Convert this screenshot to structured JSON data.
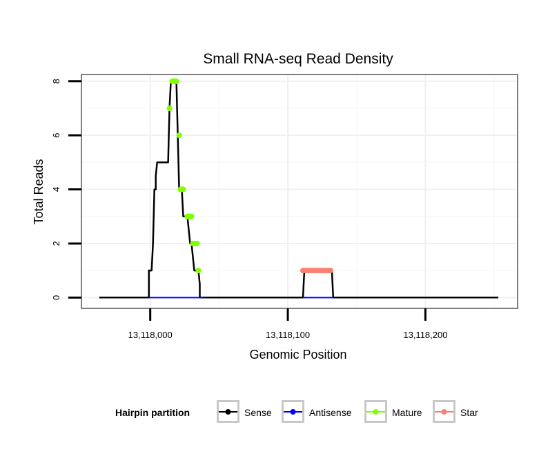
{
  "chart_data": {
    "type": "line",
    "title": "Small RNA-seq Read Density",
    "xlabel": "Genomic Position",
    "ylabel": "Total Reads",
    "xlim": [
      13117950,
      13118267
    ],
    "ylim": [
      -0.4,
      8.25
    ],
    "x_ticks": [
      13118000,
      13118100,
      13118200
    ],
    "x_tick_labels": [
      "13,118,000",
      "13,118,100",
      "13,118,200"
    ],
    "y_ticks": [
      0,
      2,
      4,
      6,
      8
    ],
    "y_tick_labels": [
      "0",
      "2",
      "4",
      "6",
      "8"
    ],
    "grid": true,
    "legend": {
      "title": "Hairpin partition",
      "position": "bottom",
      "entries": [
        {
          "label": "Sense",
          "color": "#000000"
        },
        {
          "label": "Antisense",
          "color": "#0000ff"
        },
        {
          "label": "Mature",
          "color": "#7fff00"
        },
        {
          "label": "Star",
          "color": "#fa8072"
        }
      ]
    },
    "series": [
      {
        "name": "Sense",
        "color": "#000000",
        "x": [
          13117963,
          13117999,
          13117999,
          13118001,
          13118002,
          13118003,
          13118004,
          13118004,
          13118005,
          13118013,
          13118014,
          13118014,
          13118015,
          13118019,
          13118020,
          13118021,
          13118021,
          13118023,
          13118024,
          13118027,
          13118028,
          13118029,
          13118030,
          13118031,
          13118032,
          13118035,
          13118036,
          13118036,
          13118039,
          13118111,
          13118112,
          13118132,
          13118133,
          13118253
        ],
        "values": [
          0,
          0,
          1,
          1,
          2,
          4,
          4,
          4.5,
          5,
          5,
          7,
          7,
          8,
          8,
          6,
          4,
          4,
          4,
          3,
          3,
          2.5,
          2,
          2,
          1.5,
          1,
          1,
          0.5,
          0,
          0,
          0,
          1,
          1,
          0,
          0
        ]
      },
      {
        "name": "Antisense",
        "color": "#0000ff",
        "x": [
          13117999,
          13118039,
          13118111,
          13118133
        ],
        "values": [
          0,
          0,
          0,
          0
        ],
        "segments": [
          [
            0,
            1
          ],
          [
            2,
            3
          ]
        ]
      },
      {
        "name": "Mature",
        "color": "#7fff00",
        "x": [
          13118014,
          13118016,
          13118017,
          13118018,
          13118019,
          13118021,
          13118022,
          13118023,
          13118024,
          13118027,
          13118028,
          13118030,
          13118031,
          13118032,
          13118034,
          13118035
        ],
        "values": [
          7,
          8,
          8,
          8,
          8,
          6,
          4,
          4,
          4,
          3,
          3,
          3,
          2,
          2,
          2,
          1
        ]
      },
      {
        "name": "Star",
        "color": "#fa8072",
        "x": [
          13118111,
          13118113,
          13118115,
          13118117,
          13118119,
          13118121,
          13118123,
          13118125,
          13118127,
          13118129,
          13118131
        ],
        "values": [
          1,
          1,
          1,
          1,
          1,
          1,
          1,
          1,
          1,
          1,
          1
        ]
      }
    ]
  }
}
